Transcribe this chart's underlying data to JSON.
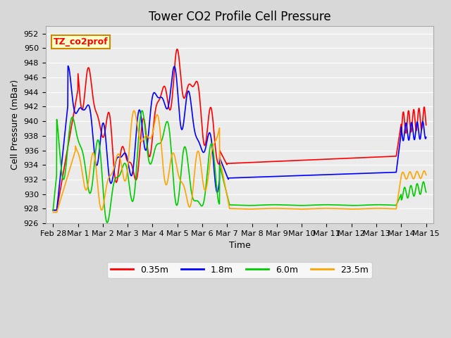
{
  "title": "Tower CO2 Profile Cell Pressure",
  "ylabel": "Cell Pressure (mBar)",
  "xlabel": "Time",
  "ylim": [
    926,
    953
  ],
  "xlim": [
    -0.3,
    15.3
  ],
  "annotation_text": "TZ_co2prof",
  "annotation_bg": "#ffffcc",
  "annotation_border": "#cc8800",
  "fig_bg": "#d8d8d8",
  "plot_bg": "#ebebeb",
  "grid_color": "white",
  "legend_entries": [
    "0.35m",
    "1.8m",
    "6.0m",
    "23.5m"
  ],
  "line_colors": [
    "red",
    "blue",
    "#00cc00",
    "orange"
  ],
  "title_fontsize": 12,
  "label_fontsize": 9,
  "tick_fontsize": 8,
  "linewidth": 1.2,
  "yticks": [
    926,
    928,
    930,
    932,
    934,
    936,
    938,
    940,
    942,
    944,
    946,
    948,
    950,
    952
  ],
  "xtick_positions": [
    0,
    1,
    2,
    3,
    4,
    5,
    6,
    7,
    8,
    9,
    10,
    11,
    12,
    13,
    14,
    15
  ],
  "xtick_labels": [
    "Feb 28",
    "Mar 1",
    "Mar 2",
    "Mar 3",
    "Mar 4",
    "Mar 5",
    "Mar 6",
    "Mar 7",
    "Mar 8",
    "Mar 9",
    "Mar 10",
    "Mar 11",
    "Mar 12",
    "Mar 13",
    "Mar 14",
    "Mar 15"
  ]
}
